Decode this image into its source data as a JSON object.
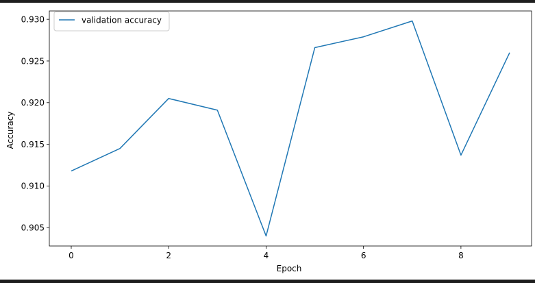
{
  "chart_data": {
    "type": "line",
    "title": "",
    "xlabel": "Epoch",
    "ylabel": "Accuracy",
    "x": [
      0,
      1,
      2,
      3,
      4,
      5,
      6,
      7,
      8,
      9
    ],
    "series": [
      {
        "name": "validation accuracy",
        "color": "#1f77b4",
        "values": [
          0.9118,
          0.9145,
          0.9205,
          0.9191,
          0.904,
          0.9266,
          0.9279,
          0.9298,
          0.9137,
          0.926
        ]
      }
    ],
    "xlim": [
      -0.45,
      9.45
    ],
    "ylim": [
      0.9028,
      0.931
    ],
    "xticks": [
      0,
      2,
      4,
      6,
      8
    ],
    "xtick_labels": [
      "0",
      "2",
      "4",
      "6",
      "8"
    ],
    "yticks": [
      0.905,
      0.91,
      0.915,
      0.92,
      0.925,
      0.93
    ],
    "ytick_labels": [
      "0.905",
      "0.910",
      "0.915",
      "0.920",
      "0.925",
      "0.930"
    ],
    "grid": false,
    "legend_position": "upper-left"
  }
}
